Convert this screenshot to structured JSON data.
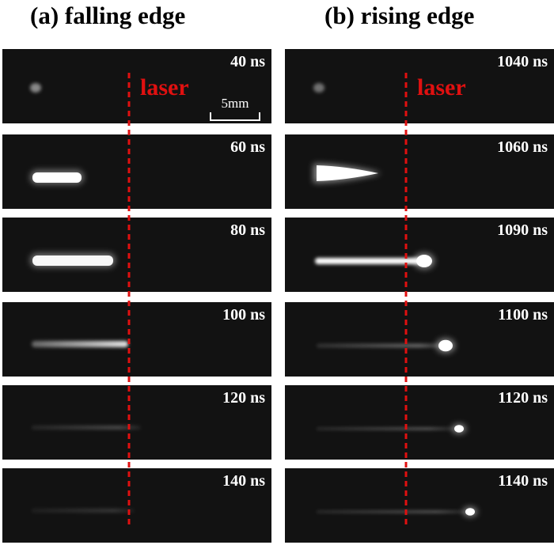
{
  "panels": [
    {
      "heading": "(a)  falling edge",
      "laser_label": "laser",
      "scale_label": "5mm",
      "frames": [
        "40 ns",
        "60 ns",
        "80 ns",
        "100 ns",
        "120 ns",
        "140 ns"
      ]
    },
    {
      "heading": "(b)  rising edge",
      "laser_label": "laser",
      "frames": [
        "1040 ns",
        "1060 ns",
        "1090 ns",
        "1100 ns",
        "1120 ns",
        "1140 ns"
      ]
    }
  ]
}
